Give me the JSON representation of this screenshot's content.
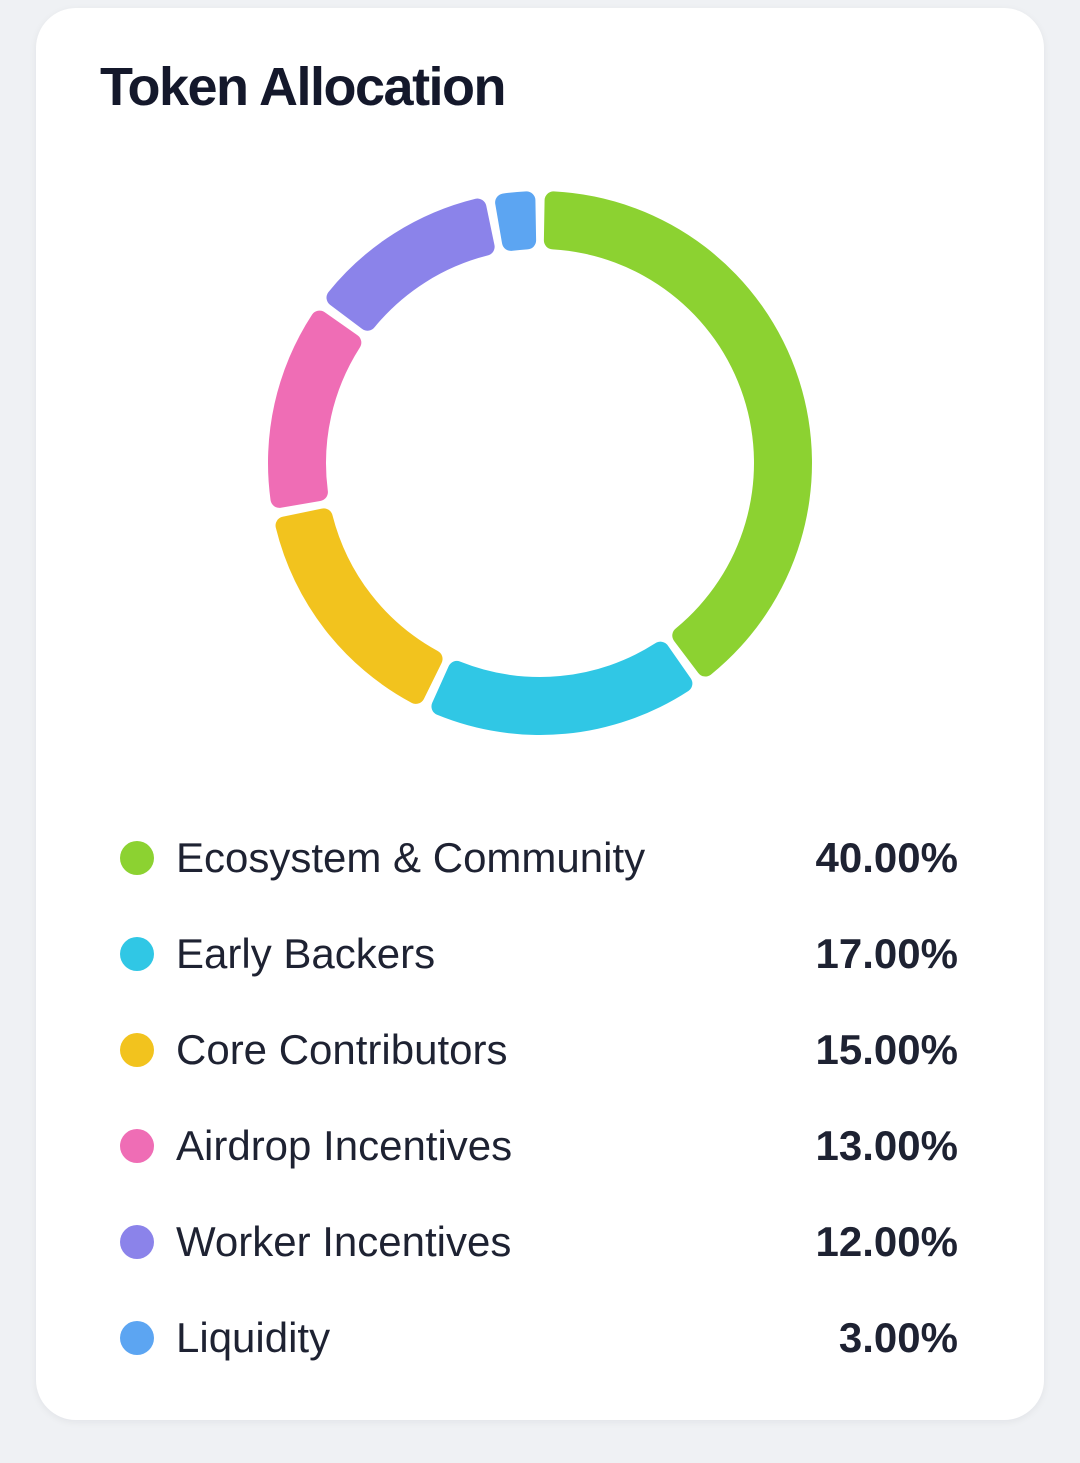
{
  "card": {
    "title": "Token Allocation"
  },
  "chart_data": {
    "type": "pie",
    "variant": "donut",
    "title": "Token Allocation",
    "categories": [
      "Ecosystem & Community",
      "Early Backers",
      "Core Contributors",
      "Airdrop Incentives",
      "Worker Incentives",
      "Liquidity"
    ],
    "values": [
      40,
      17,
      15,
      13,
      12,
      3
    ],
    "colors": [
      "#8CD231",
      "#30C7E5",
      "#F2C31E",
      "#EF6DB5",
      "#8B83EA",
      "#5CA5F2"
    ],
    "unit": "%",
    "start_angle_deg": 0,
    "direction": "clockwise",
    "legend_position": "bottom",
    "grid": false
  },
  "legend": {
    "items": [
      {
        "label": "Ecosystem & Community",
        "percent": "40.00%",
        "color": "#8CD231"
      },
      {
        "label": "Early Backers",
        "percent": "17.00%",
        "color": "#30C7E5"
      },
      {
        "label": "Core Contributors",
        "percent": "15.00%",
        "color": "#F2C31E"
      },
      {
        "label": "Airdrop Incentives",
        "percent": "13.00%",
        "color": "#EF6DB5"
      },
      {
        "label": "Worker Incentives",
        "percent": "12.00%",
        "color": "#8B83EA"
      },
      {
        "label": "Liquidity",
        "percent": "3.00%",
        "color": "#5CA5F2"
      }
    ]
  }
}
